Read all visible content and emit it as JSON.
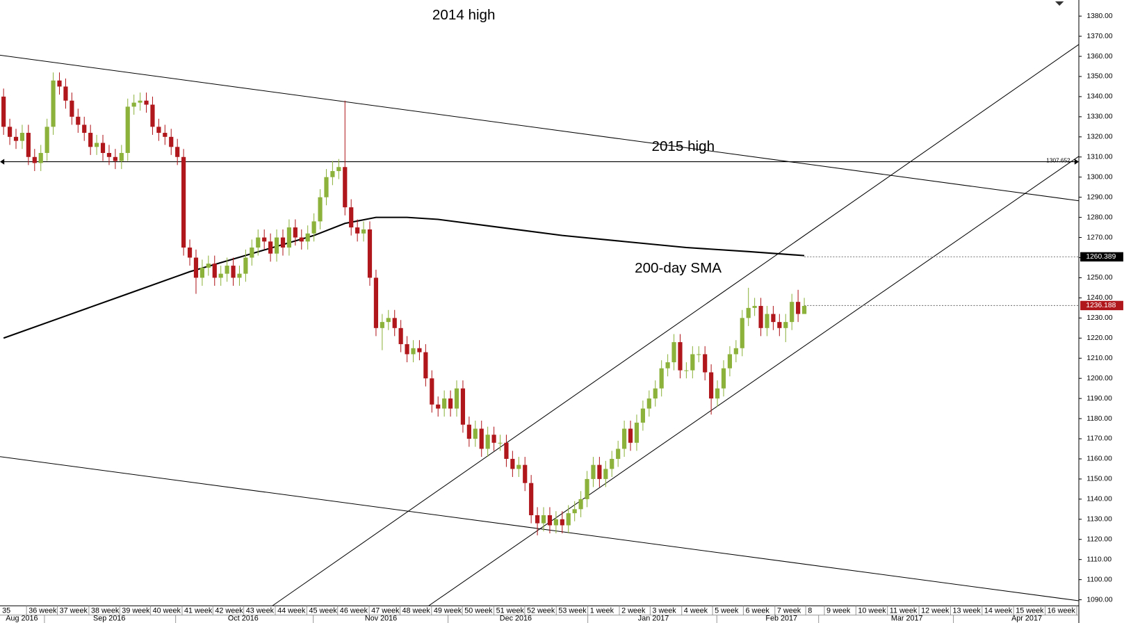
{
  "chart_data": {
    "type": "candlestick",
    "annotations": [
      "2014 high",
      "2015 high",
      "200-day SMA"
    ],
    "open": [
      1340,
      1325,
      1320,
      1318,
      1322,
      1310,
      1307,
      1312,
      1325,
      1348,
      1345,
      1338,
      1330,
      1326,
      1322,
      1315,
      1317,
      1312,
      1310,
      1308,
      1312,
      1335,
      1337,
      1338,
      1336,
      1325,
      1322,
      1320,
      1315,
      1310,
      1265,
      1260,
      1250,
      1255,
      1257,
      1250,
      1252,
      1256,
      1250,
      1252,
      1260,
      1265,
      1270,
      1268,
      1262,
      1270,
      1265,
      1275,
      1270,
      1268,
      1272,
      1278,
      1290,
      1300,
      1303,
      1305,
      1285,
      1275,
      1272,
      1274,
      1250,
      1225,
      1228,
      1230,
      1225,
      1217,
      1212,
      1215,
      1213,
      1200,
      1187,
      1185,
      1190,
      1185,
      1195,
      1177,
      1170,
      1175,
      1165,
      1172,
      1168,
      1168,
      1160,
      1155,
      1157,
      1148,
      1132,
      1128,
      1132,
      1127,
      1130,
      1127,
      1133,
      1135,
      1140,
      1150,
      1157,
      1150,
      1155,
      1160,
      1165,
      1175,
      1168,
      1178,
      1185,
      1190,
      1195,
      1205,
      1208,
      1218,
      1204,
      1204,
      1212,
      1212,
      1203,
      1190,
      1195,
      1205,
      1212,
      1215,
      1230,
      1235,
      1236,
      1225,
      1232,
      1228,
      1225,
      1228,
      1238,
      1232
    ],
    "high": [
      1344,
      1329,
      1324,
      1326,
      1326,
      1314,
      1316,
      1329,
      1352,
      1352,
      1349,
      1342,
      1334,
      1330,
      1326,
      1321,
      1321,
      1316,
      1314,
      1316,
      1339,
      1341,
      1342,
      1342,
      1340,
      1329,
      1326,
      1324,
      1319,
      1314,
      1269,
      1264,
      1259,
      1261,
      1261,
      1256,
      1260,
      1260,
      1256,
      1264,
      1269,
      1274,
      1274,
      1272,
      1274,
      1274,
      1279,
      1279,
      1274,
      1276,
      1282,
      1294,
      1304,
      1308,
      1309,
      1338,
      1289,
      1279,
      1278,
      1278,
      1254,
      1232,
      1234,
      1234,
      1229,
      1221,
      1219,
      1219,
      1217,
      1204,
      1191,
      1194,
      1194,
      1199,
      1199,
      1181,
      1179,
      1179,
      1176,
      1176,
      1172,
      1172,
      1164,
      1161,
      1161,
      1152,
      1136,
      1136,
      1136,
      1134,
      1134,
      1137,
      1139,
      1144,
      1154,
      1161,
      1161,
      1159,
      1164,
      1169,
      1179,
      1179,
      1182,
      1189,
      1194,
      1199,
      1209,
      1212,
      1222,
      1222,
      1208,
      1216,
      1216,
      1216,
      1207,
      1199,
      1209,
      1216,
      1219,
      1234,
      1245,
      1240,
      1240,
      1236,
      1236,
      1232,
      1232,
      1242,
      1244,
      1240
    ],
    "low": [
      1321,
      1316,
      1314,
      1314,
      1306,
      1303,
      1303,
      1308,
      1321,
      1341,
      1334,
      1326,
      1322,
      1318,
      1311,
      1311,
      1308,
      1306,
      1304,
      1304,
      1308,
      1331,
      1333,
      1332,
      1321,
      1318,
      1316,
      1311,
      1306,
      1261,
      1256,
      1242,
      1246,
      1251,
      1246,
      1246,
      1248,
      1246,
      1246,
      1248,
      1256,
      1261,
      1264,
      1258,
      1258,
      1261,
      1261,
      1266,
      1264,
      1264,
      1268,
      1274,
      1286,
      1296,
      1299,
      1281,
      1271,
      1268,
      1268,
      1246,
      1221,
      1214,
      1224,
      1221,
      1213,
      1208,
      1208,
      1209,
      1196,
      1183,
      1181,
      1181,
      1181,
      1181,
      1173,
      1166,
      1166,
      1161,
      1161,
      1164,
      1164,
      1156,
      1151,
      1151,
      1144,
      1128,
      1122,
      1124,
      1123,
      1123,
      1123,
      1123,
      1129,
      1131,
      1136,
      1146,
      1146,
      1146,
      1151,
      1156,
      1161,
      1164,
      1164,
      1174,
      1181,
      1186,
      1191,
      1201,
      1204,
      1200,
      1200,
      1200,
      1208,
      1199,
      1182,
      1186,
      1191,
      1201,
      1208,
      1211,
      1226,
      1231,
      1221,
      1221,
      1224,
      1221,
      1218,
      1224,
      1228,
      1232
    ],
    "close": [
      1325,
      1320,
      1318,
      1322,
      1310,
      1307,
      1312,
      1325,
      1348,
      1345,
      1338,
      1330,
      1326,
      1322,
      1315,
      1317,
      1312,
      1310,
      1308,
      1312,
      1335,
      1337,
      1338,
      1336,
      1325,
      1322,
      1320,
      1315,
      1310,
      1265,
      1260,
      1250,
      1255,
      1257,
      1250,
      1252,
      1256,
      1250,
      1252,
      1260,
      1265,
      1270,
      1268,
      1262,
      1270,
      1265,
      1275,
      1270,
      1268,
      1272,
      1278,
      1290,
      1300,
      1303,
      1305,
      1285,
      1275,
      1272,
      1274,
      1250,
      1225,
      1228,
      1230,
      1225,
      1217,
      1212,
      1215,
      1213,
      1200,
      1187,
      1185,
      1190,
      1185,
      1195,
      1177,
      1170,
      1175,
      1165,
      1172,
      1168,
      1168,
      1160,
      1155,
      1157,
      1148,
      1132,
      1128,
      1132,
      1127,
      1130,
      1127,
      1133,
      1135,
      1140,
      1150,
      1157,
      1150,
      1155,
      1160,
      1165,
      1175,
      1168,
      1178,
      1185,
      1190,
      1195,
      1205,
      1208,
      1218,
      1204,
      1204,
      1212,
      1212,
      1203,
      1190,
      1195,
      1205,
      1212,
      1215,
      1230,
      1235,
      1236,
      1225,
      1232,
      1228,
      1225,
      1228,
      1238,
      1232,
      1236
    ],
    "up_color": "#8cb23c",
    "down_color": "#b0171c",
    "sma": {
      "color": "#000000",
      "x": [
        0,
        10,
        20,
        30,
        40,
        50,
        55,
        60,
        65,
        70,
        80,
        90,
        100,
        110,
        120,
        129
      ],
      "values": [
        1220,
        1231,
        1242,
        1253,
        1262,
        1271,
        1277,
        1280,
        1280,
        1279,
        1275,
        1271,
        1268,
        1265,
        1263,
        1261
      ]
    },
    "hline": {
      "value": 1307.652,
      "label": "1307.652"
    },
    "price_tags": [
      {
        "value": 1260.389,
        "color": "#000000"
      },
      {
        "value": 1236.188,
        "color": "#b0171c"
      }
    ],
    "ylim": [
      1087,
      1388
    ],
    "yticks": [
      {
        "value": 1090,
        "label": "1090.00"
      },
      {
        "value": 1100,
        "label": "1100.00"
      },
      {
        "value": 1110,
        "label": "1110.00"
      },
      {
        "value": 1120,
        "label": "1120.00"
      },
      {
        "value": 1130,
        "label": "1130.00"
      },
      {
        "value": 1140,
        "label": "1140.00"
      },
      {
        "value": 1150,
        "label": "1150.00"
      },
      {
        "value": 1160,
        "label": "1160.00"
      },
      {
        "value": 1170,
        "label": "1170.00"
      },
      {
        "value": 1180,
        "label": "1180.00"
      },
      {
        "value": 1190,
        "label": "1190.00"
      },
      {
        "value": 1200,
        "label": "1200.00"
      },
      {
        "value": 1210,
        "label": "1210.00"
      },
      {
        "value": 1220,
        "label": "1220.00"
      },
      {
        "value": 1230,
        "label": "1230.00"
      },
      {
        "value": 1240,
        "label": "1240.00"
      },
      {
        "value": 1250,
        "label": "1250.00"
      },
      {
        "value": 1260,
        "label": "1260.00"
      },
      {
        "value": 1270,
        "label": "1270.00"
      },
      {
        "value": 1280,
        "label": "1280.00"
      },
      {
        "value": 1290,
        "label": "1290.00"
      },
      {
        "value": 1300,
        "label": "1300.00"
      },
      {
        "value": 1310,
        "label": "1310.00"
      },
      {
        "value": 1320,
        "label": "1320.00"
      },
      {
        "value": 1330,
        "label": "1330.00"
      },
      {
        "value": 1340,
        "label": "1340.00"
      },
      {
        "value": 1350,
        "label": "1350.00"
      },
      {
        "value": 1360,
        "label": "1360.00"
      },
      {
        "value": 1370,
        "label": "1370.00"
      },
      {
        "value": 1380,
        "label": "1380.00"
      }
    ],
    "week_labels": [
      "35",
      "36 week",
      "37 week",
      "38 week",
      "39 week",
      "40 week",
      "41 week",
      "42 week",
      "43 week",
      "44 week",
      "45 week",
      "46 week",
      "47 week",
      "48 week",
      "49 week",
      "50 week",
      "51 week",
      "52 week",
      "53 week",
      "1 week",
      "2 week",
      "3 week",
      "4 week",
      "5 week",
      "6 week",
      "7 week",
      "8",
      "9 week",
      "10 week",
      "11 week",
      "12 week",
      "13 week",
      "14 week",
      "15 week",
      "16 week"
    ],
    "month_labels": [
      "Aug 2016",
      "Sep 2016",
      "Oct 2016",
      "Nov 2016",
      "Dec 2016",
      "Jan 2017",
      "Feb 2017",
      "Mar 2017",
      "Apr 2017"
    ]
  }
}
